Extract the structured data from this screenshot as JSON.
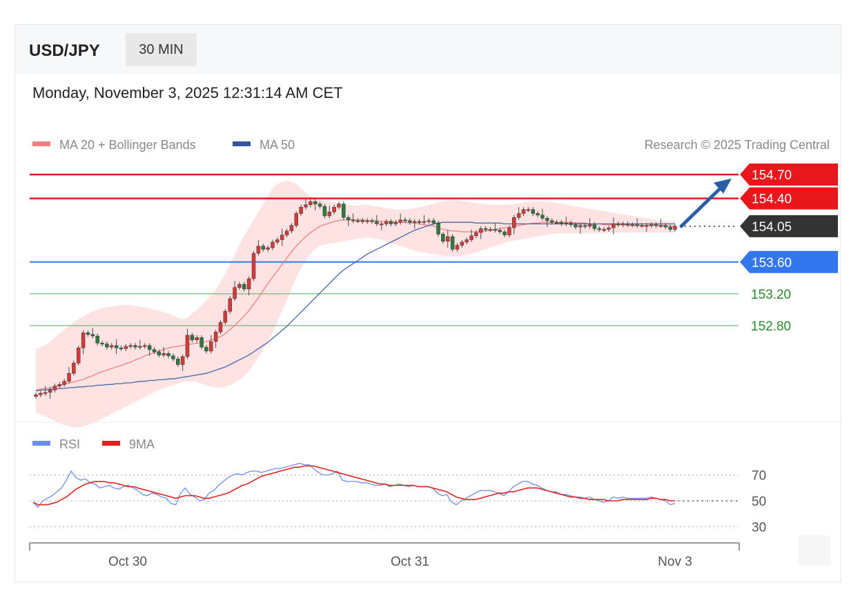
{
  "header": {
    "pair": "USD/JPY",
    "timeframe": "30 MIN",
    "datetime": "Monday, November 3, 2025 12:31:14 AM CET"
  },
  "legend": {
    "ma20_bb": "MA 20 + Bollinger Bands",
    "ma50": "MA 50",
    "copyright": "Research © 2025 Trading Central"
  },
  "rsi_legend": {
    "rsi": "RSI",
    "ma9": "9MA"
  },
  "colors": {
    "resistance": "#e8171b",
    "support": "#3377ee",
    "support_minor": "#55aa55",
    "current": "#333333",
    "ma20": "#f08080",
    "ma50": "#4466aa",
    "bb_fill": "#ffd9d9",
    "bull": "#d63a3a",
    "bear": "#2d7a3d",
    "rsi": "#6b8ee6",
    "rsi_ma": "#e02020",
    "arrow": "#2a5fa8"
  },
  "chart_data": [
    {
      "type": "candlestick",
      "levels": [
        {
          "value": 154.7,
          "label": "154.70",
          "kind": "resistance"
        },
        {
          "value": 154.4,
          "label": "154.40",
          "kind": "resistance"
        },
        {
          "value": 154.05,
          "label": "154.05",
          "kind": "current"
        },
        {
          "value": 153.6,
          "label": "153.60",
          "kind": "support"
        },
        {
          "value": 153.2,
          "label": "153.20",
          "kind": "support_minor"
        },
        {
          "value": 152.8,
          "label": "152.80",
          "kind": "support_minor"
        }
      ],
      "x_ticks": [
        "Oct 30",
        "Oct 31",
        "Nov 3"
      ],
      "forecast_arrow": {
        "from": 154.05,
        "to": 154.65
      },
      "close": [
        151.93,
        151.95,
        151.96,
        151.99,
        152.04,
        152.06,
        152.1,
        152.2,
        152.33,
        152.52,
        152.71,
        152.69,
        152.67,
        152.58,
        152.57,
        152.53,
        152.55,
        152.52,
        152.51,
        152.54,
        152.55,
        152.53,
        152.54,
        152.55,
        152.5,
        152.47,
        152.43,
        152.45,
        152.42,
        152.38,
        152.31,
        152.41,
        152.68,
        152.62,
        152.65,
        152.53,
        152.48,
        152.6,
        152.72,
        152.84,
        152.98,
        153.14,
        153.28,
        153.32,
        153.26,
        153.39,
        153.71,
        153.8,
        153.76,
        153.78,
        153.85,
        153.88,
        153.94,
        153.99,
        154.06,
        154.21,
        154.29,
        154.32,
        154.36,
        154.33,
        154.3,
        154.18,
        154.23,
        154.29,
        154.33,
        154.16,
        154.13,
        154.12,
        154.12,
        154.11,
        154.12,
        154.11,
        154.08,
        154.08,
        154.11,
        154.08,
        154.1,
        154.13,
        154.12,
        154.1,
        154.11,
        154.1,
        154.11,
        154.12,
        154.09,
        153.95,
        153.86,
        153.92,
        153.76,
        153.81,
        153.85,
        153.88,
        153.93,
        153.97,
        154.02,
        154.01,
        154.01,
        154.0,
        153.98,
        153.94,
        154.03,
        154.16,
        154.21,
        154.26,
        154.26,
        154.21,
        154.19,
        154.15,
        154.12,
        154.1,
        154.1,
        154.08,
        154.09,
        154.07,
        154.04,
        154.06,
        154.05,
        154.07,
        154.02,
        154.01,
        154.01,
        154.03,
        154.08,
        154.07,
        154.08,
        154.07,
        154.07,
        154.06,
        154.06,
        154.06,
        154.07,
        154.06,
        154.06,
        154.04,
        154.01,
        154.05
      ],
      "ma20": [
        151.99,
        152.0,
        152.01,
        152.02,
        152.03,
        152.05,
        152.06,
        152.08,
        152.09,
        152.11,
        152.12,
        152.15,
        152.17,
        152.2,
        152.22,
        152.24,
        152.26,
        152.28,
        152.3,
        152.32,
        152.34,
        152.37,
        152.39,
        152.42,
        152.44,
        152.46,
        152.48,
        152.5,
        152.52,
        152.53,
        152.54,
        152.55,
        152.56,
        152.57,
        152.58,
        152.59,
        152.6,
        152.62,
        152.64,
        152.66,
        152.7,
        152.75,
        152.8,
        152.86,
        152.92,
        152.99,
        153.07,
        153.15,
        153.24,
        153.33,
        153.41,
        153.49,
        153.57,
        153.65,
        153.73,
        153.8,
        153.86,
        153.92,
        153.97,
        154.01,
        154.05,
        154.07,
        154.09,
        154.11,
        154.12,
        154.13,
        154.13,
        154.13,
        154.13,
        154.13,
        154.12,
        154.12,
        154.12,
        154.11,
        154.11,
        154.11,
        154.1,
        154.1,
        154.1,
        154.09,
        154.09,
        154.08,
        154.07,
        154.06,
        154.05,
        154.03,
        154.01,
        154.0,
        153.99,
        153.99,
        153.98,
        153.98,
        153.98,
        153.98,
        153.99,
        153.99,
        154.0,
        154.01,
        154.02,
        154.03,
        154.04,
        154.05,
        154.06,
        154.07,
        154.08,
        154.09,
        154.09,
        154.1,
        154.1,
        154.1,
        154.1,
        154.1,
        154.1,
        154.1,
        154.09,
        154.09,
        154.09,
        154.08,
        154.08,
        154.08,
        154.07,
        154.07,
        154.07,
        154.07,
        154.07,
        154.06,
        154.06,
        154.06,
        154.06,
        154.06,
        154.06,
        154.06,
        154.06,
        154.06,
        154.05,
        154.05
      ],
      "ma50": [
        151.98,
        151.99,
        151.99,
        152.0,
        152.0,
        152.01,
        152.01,
        152.02,
        152.02,
        152.03,
        152.03,
        152.04,
        152.04,
        152.05,
        152.05,
        152.06,
        152.06,
        152.07,
        152.07,
        152.08,
        152.08,
        152.09,
        152.1,
        152.1,
        152.11,
        152.11,
        152.12,
        152.12,
        152.13,
        152.13,
        152.14,
        152.15,
        152.16,
        152.17,
        152.18,
        152.19,
        152.2,
        152.22,
        152.24,
        152.26,
        152.28,
        152.31,
        152.34,
        152.37,
        152.4,
        152.43,
        152.47,
        152.51,
        152.55,
        152.59,
        152.64,
        152.69,
        152.74,
        152.79,
        152.85,
        152.91,
        152.97,
        153.03,
        153.09,
        153.15,
        153.21,
        153.27,
        153.33,
        153.39,
        153.45,
        153.5,
        153.54,
        153.58,
        153.62,
        153.66,
        153.7,
        153.73,
        153.76,
        153.79,
        153.82,
        153.85,
        153.88,
        153.91,
        153.94,
        153.97,
        154.0,
        154.02,
        154.04,
        154.06,
        154.08,
        154.09,
        154.1,
        154.1,
        154.1,
        154.1,
        154.1,
        154.1,
        154.1,
        154.09,
        154.09,
        154.09,
        154.09,
        154.09,
        154.09,
        154.08,
        154.08,
        154.08,
        154.08,
        154.08,
        154.08,
        154.08,
        154.08,
        154.08,
        154.08,
        154.08,
        154.08,
        154.08,
        154.08,
        154.08,
        154.08,
        154.08,
        154.08,
        154.08,
        154.08,
        154.08,
        154.08,
        154.08,
        154.08,
        154.08,
        154.08,
        154.08,
        154.08,
        154.08,
        154.08,
        154.08,
        154.08,
        154.08,
        154.08,
        154.08,
        154.08,
        154.08
      ],
      "bb_upper": [
        152.5,
        152.53,
        152.56,
        152.6,
        152.65,
        152.7,
        152.75,
        152.8,
        152.84,
        152.88,
        152.92,
        152.95,
        152.98,
        153.0,
        153.02,
        153.03,
        153.04,
        153.05,
        153.06,
        153.06,
        153.06,
        153.05,
        153.04,
        153.03,
        153.02,
        153.0,
        152.99,
        152.97,
        152.95,
        152.93,
        152.9,
        152.88,
        152.9,
        152.95,
        153.0,
        153.06,
        153.12,
        153.18,
        153.25,
        153.35,
        153.46,
        153.58,
        153.7,
        153.82,
        153.93,
        154.03,
        154.13,
        154.23,
        154.33,
        154.43,
        154.53,
        154.58,
        154.61,
        154.62,
        154.61,
        154.58,
        154.53,
        154.47,
        154.43,
        154.4,
        154.38,
        154.37,
        154.36,
        154.35,
        154.34,
        154.33,
        154.32,
        154.31,
        154.31,
        154.32,
        154.32,
        154.31,
        154.3,
        154.29,
        154.28,
        154.27,
        154.26,
        154.26,
        154.26,
        154.27,
        154.28,
        154.29,
        154.3,
        154.32,
        154.33,
        154.35,
        154.36,
        154.37,
        154.38,
        154.38,
        154.37,
        154.36,
        154.35,
        154.34,
        154.33,
        154.32,
        154.32,
        154.32,
        154.32,
        154.32,
        154.32,
        154.33,
        154.34,
        154.35,
        154.36,
        154.36,
        154.36,
        154.36,
        154.36,
        154.35,
        154.34,
        154.33,
        154.32,
        154.31,
        154.3,
        154.29,
        154.28,
        154.27,
        154.26,
        154.25,
        154.24,
        154.23,
        154.22,
        154.21,
        154.2,
        154.19,
        154.18,
        154.17,
        154.16,
        154.15,
        154.14,
        154.13,
        154.12,
        154.12,
        154.12,
        154.12
      ],
      "bb_lower": [
        151.7,
        151.68,
        151.66,
        151.63,
        151.6,
        151.57,
        151.55,
        151.53,
        151.52,
        151.52,
        151.53,
        151.55,
        151.57,
        151.6,
        151.63,
        151.66,
        151.69,
        151.72,
        151.75,
        151.78,
        151.81,
        151.84,
        151.87,
        151.9,
        151.93,
        151.96,
        151.99,
        152.01,
        152.03,
        152.05,
        152.07,
        152.09,
        152.1,
        152.1,
        152.09,
        152.07,
        152.05,
        152.03,
        152.02,
        152.02,
        152.03,
        152.05,
        152.08,
        152.12,
        152.17,
        152.23,
        152.31,
        152.4,
        152.5,
        152.6,
        152.72,
        152.85,
        152.98,
        153.12,
        153.26,
        153.4,
        153.52,
        153.62,
        153.7,
        153.76,
        153.8,
        153.82,
        153.83,
        153.84,
        153.85,
        153.86,
        153.87,
        153.88,
        153.89,
        153.9,
        153.91,
        153.9,
        153.89,
        153.88,
        153.86,
        153.84,
        153.82,
        153.8,
        153.78,
        153.76,
        153.74,
        153.73,
        153.72,
        153.71,
        153.7,
        153.69,
        153.68,
        153.67,
        153.67,
        153.67,
        153.68,
        153.69,
        153.7,
        153.72,
        153.74,
        153.76,
        153.78,
        153.8,
        153.82,
        153.84,
        153.86,
        153.87,
        153.88,
        153.89,
        153.9,
        153.91,
        153.92,
        153.93,
        153.94,
        153.95,
        153.96,
        153.96,
        153.96,
        153.96,
        153.96,
        153.96,
        153.96,
        153.96,
        153.96,
        153.96,
        153.96,
        153.97,
        153.97,
        153.97,
        153.97,
        153.97,
        153.97,
        153.97,
        153.97,
        153.97,
        153.97,
        153.97,
        153.97,
        153.97,
        153.97,
        153.97
      ]
    },
    {
      "type": "line",
      "series": [
        {
          "name": "RSI",
          "values": [
            49,
            45,
            50,
            52,
            54,
            57,
            60,
            66,
            73,
            68,
            66,
            67,
            64,
            63,
            60,
            61,
            62,
            60,
            59,
            61,
            62,
            60,
            58,
            55,
            54,
            56,
            55,
            53,
            52,
            48,
            47,
            56,
            60,
            55,
            53,
            50,
            51,
            56,
            58,
            62,
            65,
            68,
            70,
            71,
            70,
            72,
            73,
            73,
            72,
            73,
            74,
            75,
            75,
            76,
            77,
            78,
            79,
            78,
            78,
            75,
            72,
            70,
            70,
            71,
            73,
            66,
            65,
            65,
            65,
            64,
            64,
            63,
            62,
            62,
            63,
            61,
            62,
            63,
            62,
            61,
            62,
            61,
            61,
            61,
            60,
            56,
            54,
            55,
            49,
            47,
            50,
            52,
            54,
            56,
            58,
            58,
            58,
            57,
            56,
            54,
            57,
            61,
            63,
            65,
            65,
            63,
            62,
            60,
            58,
            57,
            57,
            55,
            55,
            54,
            53,
            53,
            52,
            53,
            51,
            50,
            49,
            50,
            53,
            52,
            53,
            52,
            52,
            52,
            52,
            52,
            53,
            52,
            51,
            50,
            47,
            48
          ],
          "ylim": [
            20,
            80
          ]
        },
        {
          "name": "9MA",
          "values": [
            49,
            47,
            47,
            47,
            48,
            49,
            51,
            53,
            56,
            59,
            61,
            63,
            64,
            65,
            65,
            65,
            64,
            64,
            63,
            62,
            61,
            61,
            60,
            59,
            58,
            57,
            56,
            55,
            54,
            53,
            52,
            53,
            54,
            54,
            54,
            53,
            52,
            52,
            53,
            54,
            55,
            56,
            58,
            60,
            62,
            63,
            65,
            67,
            69,
            70,
            71,
            72,
            73,
            74,
            75,
            76,
            76,
            77,
            77,
            77,
            76,
            75,
            74,
            73,
            72,
            71,
            70,
            69,
            68,
            67,
            66,
            65,
            64,
            63,
            63,
            62,
            62,
            62,
            62,
            62,
            62,
            61,
            61,
            61,
            60,
            59,
            58,
            57,
            55,
            53,
            52,
            51,
            51,
            51,
            52,
            53,
            54,
            55,
            56,
            56,
            57,
            57,
            58,
            59,
            60,
            60,
            60,
            59,
            58,
            57,
            56,
            55,
            54,
            53,
            53,
            52,
            52,
            51,
            51,
            51,
            51,
            50,
            50,
            50,
            51,
            51,
            51,
            51,
            51,
            51,
            52,
            52,
            51,
            51,
            50,
            50
          ]
        }
      ],
      "y_ticks": [
        "70",
        "50",
        "30"
      ]
    }
  ]
}
